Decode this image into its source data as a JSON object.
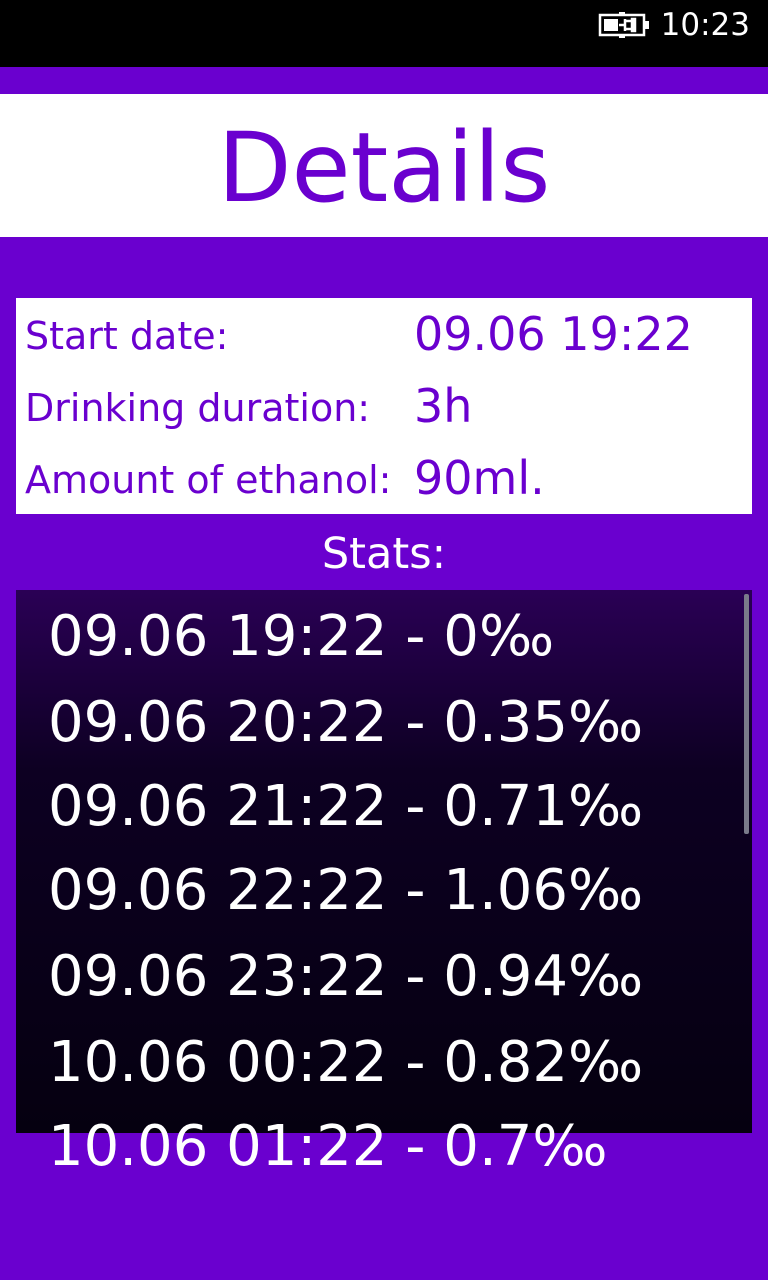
{
  "status_bar": {
    "time": "10:23",
    "battery_icon": "battery-charging-icon"
  },
  "page": {
    "title": "Details"
  },
  "details": {
    "start_date": {
      "label": "Start date:",
      "value": "09.06 19:22"
    },
    "duration": {
      "label": "Drinking duration:",
      "value": "3h"
    },
    "ethanol": {
      "label": "Amount of ethanol:",
      "value": "90ml."
    }
  },
  "stats": {
    "label": "Stats:",
    "items": [
      "09.06 19:22 - 0‰",
      "09.06 20:22 - 0.35‰",
      "09.06 21:22 - 0.71‰",
      "09.06 22:22 - 1.06‰",
      "09.06 23:22 - 0.94‰",
      "10.06 00:22 - 0.82‰",
      "10.06 01:22 - 0.7‰"
    ]
  },
  "colors": {
    "accent": "#6a00cf",
    "status_bar": "#000000",
    "list_background": "#0d0022"
  }
}
